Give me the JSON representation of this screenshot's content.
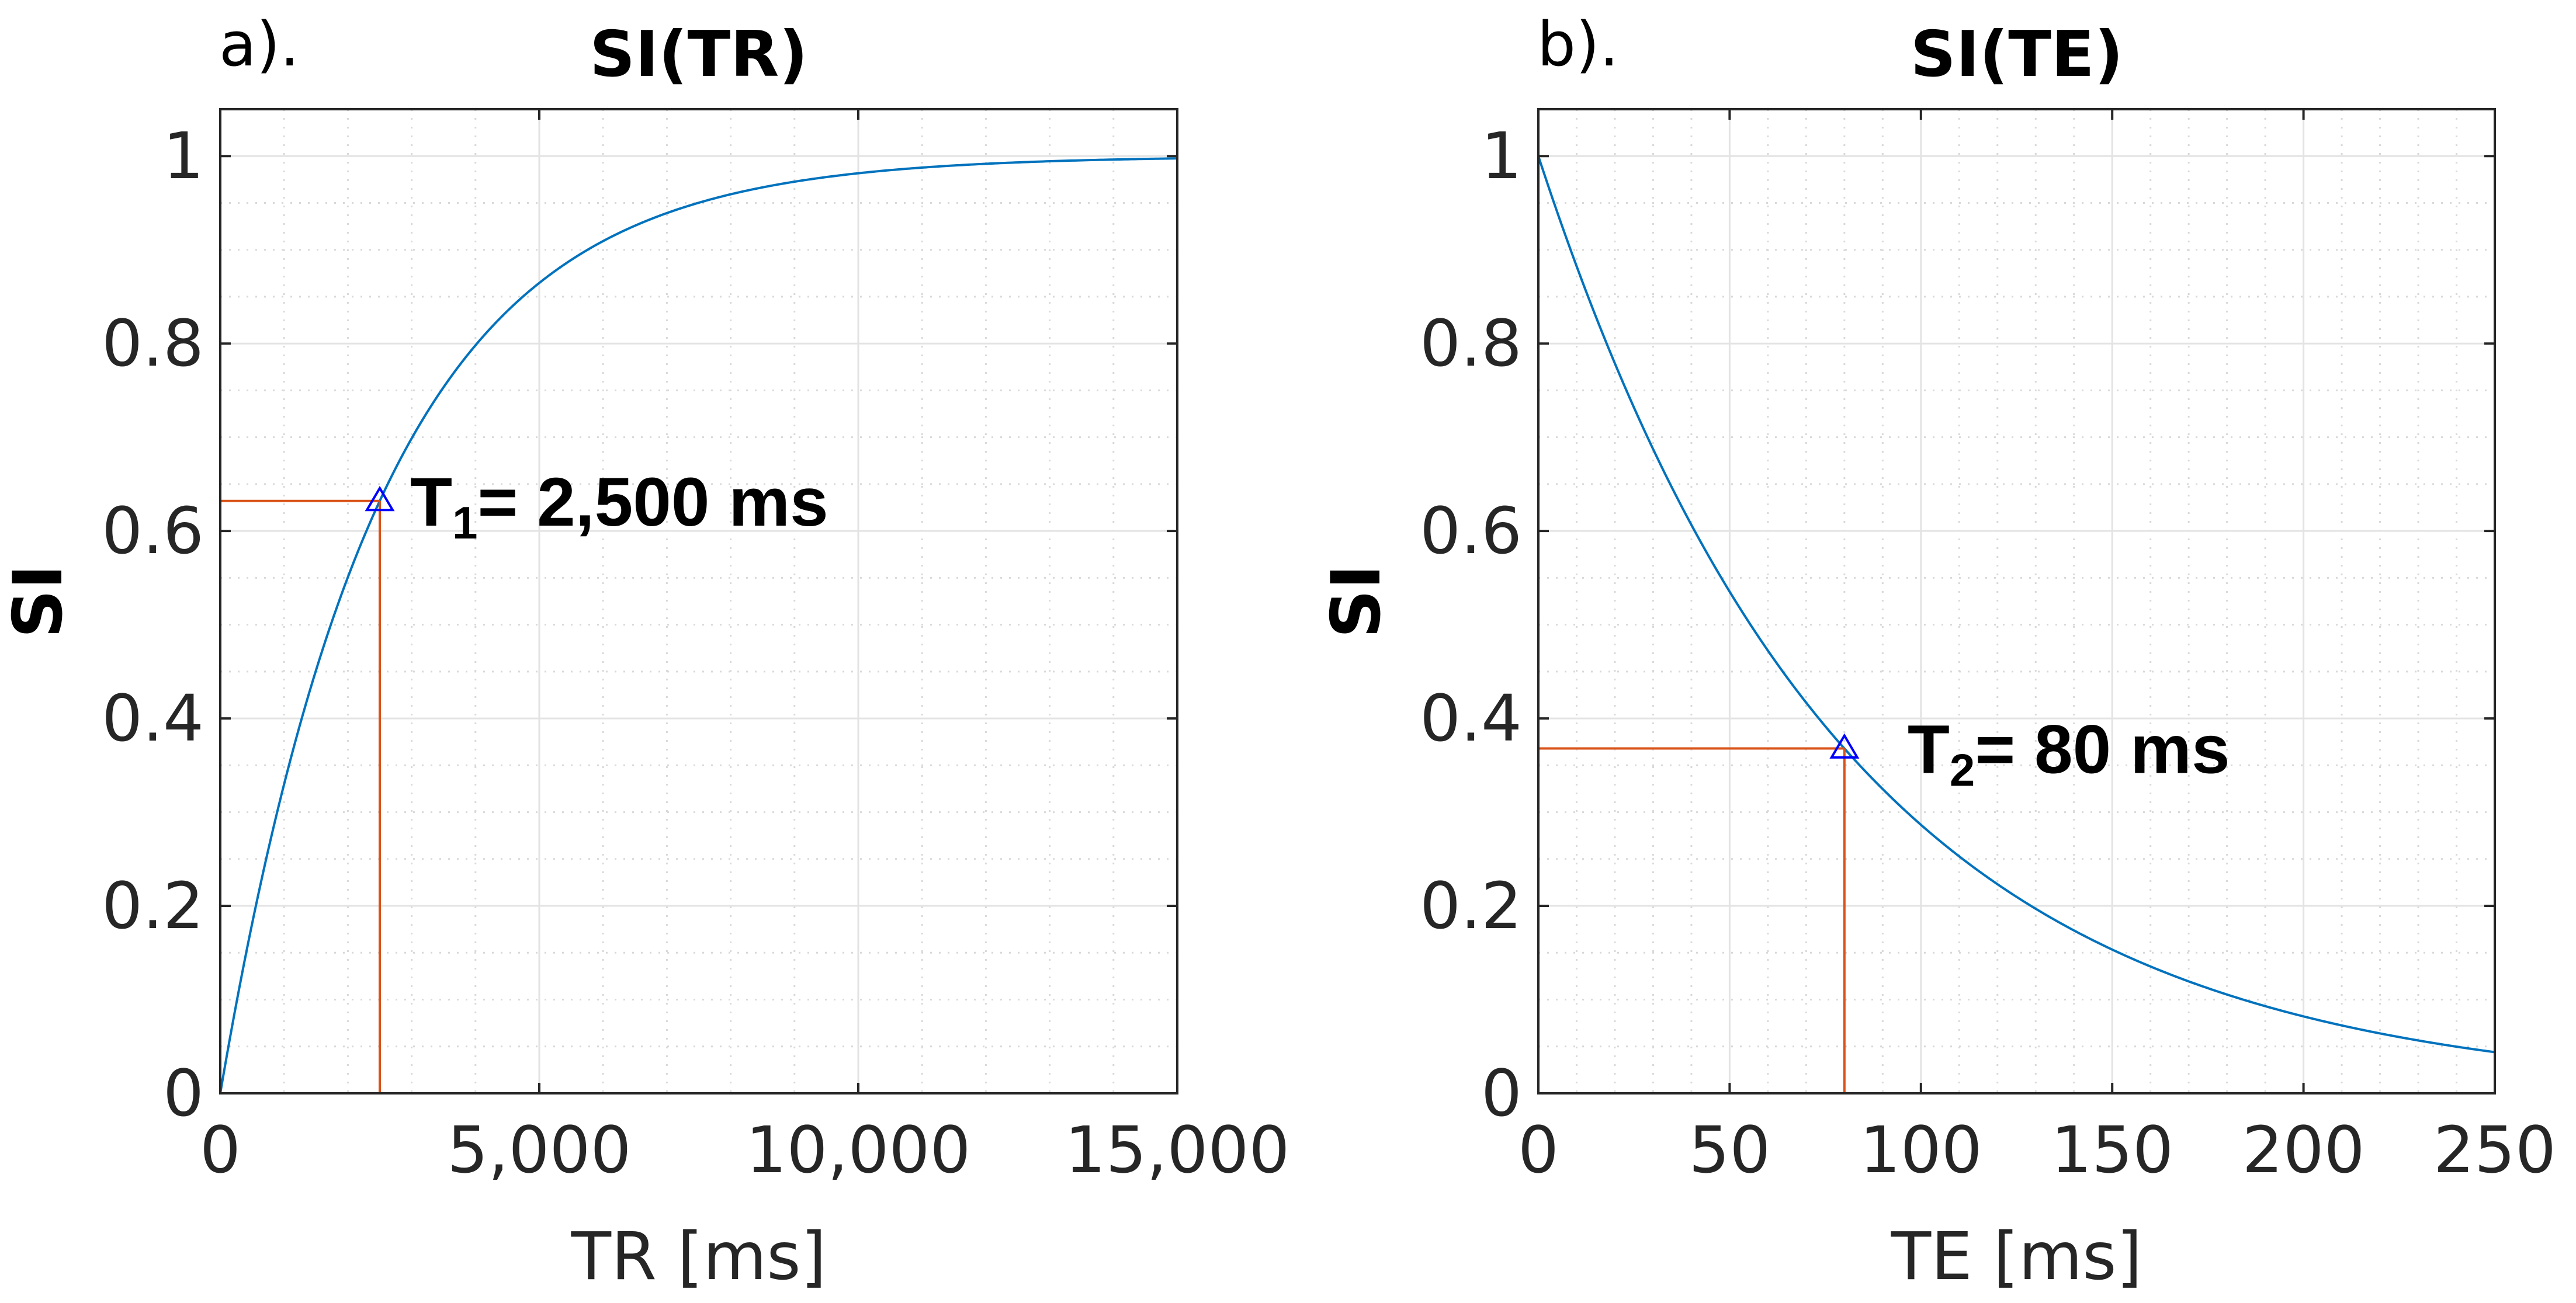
{
  "chart_data": [
    {
      "type": "line",
      "panel_label": "a).",
      "title": "SI(TR)",
      "xlabel": "TR [ms]",
      "ylabel": "SI",
      "xlim": [
        0,
        15000
      ],
      "ylim": [
        0,
        1.05
      ],
      "xticks": [
        0,
        5000,
        10000,
        15000
      ],
      "xtick_labels": [
        "0",
        "5,000",
        "10,000",
        "15,000"
      ],
      "yticks": [
        0,
        0.2,
        0.4,
        0.6,
        0.8,
        1
      ],
      "ytick_labels": [
        "0",
        "0.2",
        "0.4",
        "0.6",
        "0.8",
        "1"
      ],
      "grid": true,
      "minor_grid": true,
      "curve": {
        "equation": "SI = 1 - exp(-TR/T1)",
        "param": 2500,
        "color": "#0072BD"
      },
      "x": [
        0,
        500,
        1000,
        1500,
        2000,
        2500,
        3000,
        4000,
        5000,
        6000,
        7000,
        8000,
        10000,
        12000,
        15000
      ],
      "values": [
        0,
        0.181,
        0.33,
        0.451,
        0.551,
        0.632,
        0.699,
        0.798,
        0.865,
        0.909,
        0.939,
        0.959,
        0.982,
        0.992,
        0.998
      ],
      "marker": {
        "x": 2500,
        "y": 0.632,
        "color": "#0000FF",
        "symbol": "triangle"
      },
      "guide_color": "#D95319",
      "annotation": {
        "main": "T",
        "sub": "1",
        "rest": "= 2,500 ms"
      }
    },
    {
      "type": "line",
      "panel_label": "b).",
      "title": "SI(TE)",
      "xlabel": "TE [ms]",
      "ylabel": "SI",
      "xlim": [
        0,
        250
      ],
      "ylim": [
        0,
        1.05
      ],
      "xticks": [
        0,
        50,
        100,
        150,
        200,
        250
      ],
      "xtick_labels": [
        "0",
        "50",
        "100",
        "150",
        "200",
        "250"
      ],
      "yticks": [
        0,
        0.2,
        0.4,
        0.6,
        0.8,
        1
      ],
      "ytick_labels": [
        "0",
        "0.2",
        "0.4",
        "0.6",
        "0.8",
        "1"
      ],
      "grid": true,
      "minor_grid": true,
      "curve": {
        "equation": "SI = exp(-TE/T2)",
        "param": 80,
        "color": "#0072BD"
      },
      "x": [
        0,
        20,
        40,
        60,
        80,
        100,
        120,
        150,
        180,
        200,
        220,
        250
      ],
      "values": [
        1,
        0.779,
        0.607,
        0.472,
        0.368,
        0.287,
        0.223,
        0.153,
        0.105,
        0.082,
        0.064,
        0.044
      ],
      "marker": {
        "x": 80,
        "y": 0.368,
        "color": "#0000FF",
        "symbol": "triangle"
      },
      "guide_color": "#D95319",
      "annotation": {
        "main": "T",
        "sub": "2",
        "rest": "= 80 ms"
      }
    }
  ]
}
